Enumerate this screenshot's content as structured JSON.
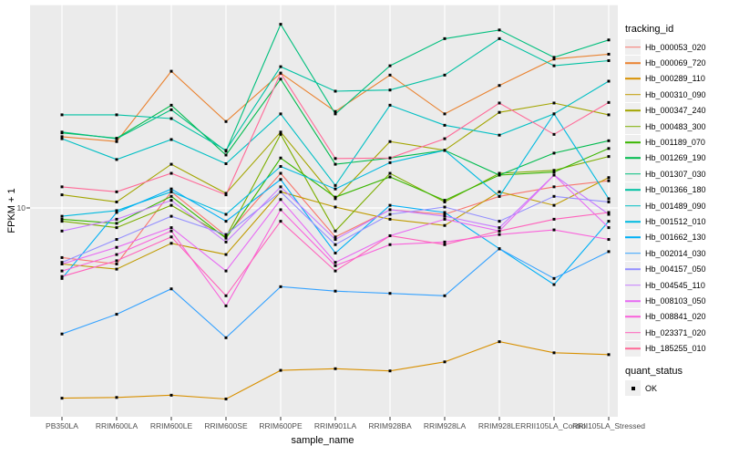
{
  "figure": {
    "y_axis": {
      "label": "FPKM + 1",
      "tick_label": "10"
    },
    "x_axis": {
      "label": "sample_name"
    },
    "legend": {
      "tracking_title": "tracking_id",
      "quant_title": "quant_status",
      "quant_ok_label": "OK"
    },
    "colors": {
      "panel_bg": "#EBEBEB",
      "grid": "#FFFFFF",
      "tick_mark": "#333333",
      "tick_text": "#4D4D4D",
      "point": "#000000",
      "key_bg": "#EFEFEF"
    }
  },
  "chart_data": {
    "type": "line",
    "title": "",
    "xlabel": "sample_name",
    "ylabel": "FPKM + 1",
    "y_scale": "log10",
    "ylim": [
      0.94,
      100
    ],
    "y_ticks": [
      10,
      100
    ],
    "grid": true,
    "legend_position": "right",
    "point_shape": "square",
    "point_color": "#000000",
    "quant_status": "OK",
    "categories": [
      "PB350LA",
      "RRIM600LA",
      "RRIM600LE",
      "RRIM600SE",
      "RRIM600PE",
      "RRIM901LA",
      "RRIM928BA",
      "RRIM928LA",
      "RRIM928LE",
      "RRII105LA_Control",
      "RRII105LA_Stressed"
    ],
    "series": [
      {
        "name": "Hb_000053_020",
        "color": "#F8766D",
        "values": [
          5.7,
          5.3,
          12.0,
          7.3,
          14.8,
          7.2,
          9.8,
          9.3,
          11.4,
          12.7,
          13.6
        ]
      },
      {
        "name": "Hb_000069_720",
        "color": "#EA8331",
        "values": [
          22.4,
          21.2,
          47.0,
          26.6,
          46.0,
          29.8,
          45.0,
          29.0,
          40.0,
          54.0,
          57.0
        ]
      },
      {
        "name": "Hb_000289_110",
        "color": "#D89000",
        "values": [
          1.16,
          1.17,
          1.2,
          1.15,
          1.59,
          1.62,
          1.58,
          1.75,
          2.2,
          1.94,
          1.9
        ]
      },
      {
        "name": "Hb_000310_090",
        "color": "#C09B00",
        "values": [
          5.3,
          5.0,
          6.7,
          5.9,
          12.0,
          10.1,
          8.8,
          8.2,
          12.0,
          10.3,
          14.1
        ]
      },
      {
        "name": "Hb_000347_240",
        "color": "#A3A500",
        "values": [
          11.6,
          10.7,
          16.4,
          11.8,
          23.6,
          11.1,
          21.2,
          19.2,
          29.5,
          32.8,
          28.7
        ]
      },
      {
        "name": "Hb_000483_300",
        "color": "#7CAE00",
        "values": [
          8.6,
          8.0,
          10.3,
          7.2,
          23.0,
          7.7,
          14.8,
          10.7,
          14.8,
          15.3,
          17.9
        ]
      },
      {
        "name": "Hb_001189_070",
        "color": "#39B600",
        "values": [
          8.8,
          8.4,
          11.4,
          7.1,
          17.6,
          11.3,
          14.2,
          10.9,
          14.5,
          15.0,
          19.6
        ]
      },
      {
        "name": "Hb_001269_190",
        "color": "#00BB4E",
        "values": [
          23.4,
          22.0,
          32.0,
          18.2,
          43.0,
          16.4,
          17.6,
          19.2,
          14.5,
          18.6,
          21.4
        ]
      },
      {
        "name": "Hb_001307_030",
        "color": "#00BF7D",
        "values": [
          23.6,
          21.9,
          30.4,
          19.0,
          80.0,
          29.0,
          50.0,
          68.0,
          75.0,
          55.0,
          67.0
        ]
      },
      {
        "name": "Hb_001366_180",
        "color": "#00C1A3",
        "values": [
          28.7,
          28.7,
          27.5,
          19.2,
          49.5,
          37.5,
          38.0,
          45.0,
          68.0,
          50.0,
          53.0
        ]
      },
      {
        "name": "Hb_001489_090",
        "color": "#00BFC4",
        "values": [
          21.9,
          17.3,
          21.7,
          16.5,
          29.0,
          12.9,
          32.0,
          25.5,
          22.8,
          29.0,
          42.0
        ]
      },
      {
        "name": "Hb_001512_010",
        "color": "#00BAE0",
        "values": [
          9.1,
          9.7,
          12.0,
          9.3,
          16.0,
          12.4,
          16.7,
          19.2,
          11.4,
          29.0,
          11.1
        ]
      },
      {
        "name": "Hb_001662_130",
        "color": "#00B0F6",
        "values": [
          4.5,
          9.5,
          12.4,
          8.6,
          13.8,
          6.0,
          10.3,
          9.5,
          6.3,
          4.2,
          8.6
        ]
      },
      {
        "name": "Hb_002014_030",
        "color": "#35A2FF",
        "values": [
          2.4,
          3.0,
          4.0,
          2.3,
          4.1,
          3.9,
          3.8,
          3.7,
          6.3,
          4.5,
          6.1
        ]
      },
      {
        "name": "Hb_004157_050",
        "color": "#9590FF",
        "values": [
          5.4,
          7.0,
          9.1,
          7.4,
          12.0,
          6.6,
          9.3,
          10.1,
          8.6,
          11.4,
          10.7
        ]
      },
      {
        "name": "Hb_004545_110",
        "color": "#C77CFF",
        "values": [
          7.7,
          8.8,
          10.9,
          6.8,
          12.7,
          7.0,
          9.8,
          9.1,
          8.0,
          14.5,
          9.3
        ]
      },
      {
        "name": "Hb_008103_050",
        "color": "#E76BF3",
        "values": [
          5.3,
          6.4,
          8.0,
          4.9,
          11.0,
          5.4,
          7.3,
          8.8,
          7.7,
          14.5,
          8.0
        ]
      },
      {
        "name": "Hb_008841_020",
        "color": "#FA62DB",
        "values": [
          4.9,
          5.9,
          7.7,
          3.3,
          9.8,
          5.2,
          6.6,
          6.8,
          7.4,
          7.8,
          7.0
        ]
      },
      {
        "name": "Hb_023371_020",
        "color": "#FF62BC",
        "values": [
          4.6,
          5.5,
          7.2,
          3.7,
          8.6,
          4.9,
          7.3,
          6.6,
          7.7,
          8.8,
          9.5
        ]
      },
      {
        "name": "Hb_185255_010",
        "color": "#FF6A98",
        "values": [
          12.7,
          12.0,
          14.8,
          11.6,
          46.0,
          17.5,
          17.6,
          21.9,
          32.8,
          23.0,
          33.0
        ]
      }
    ]
  }
}
